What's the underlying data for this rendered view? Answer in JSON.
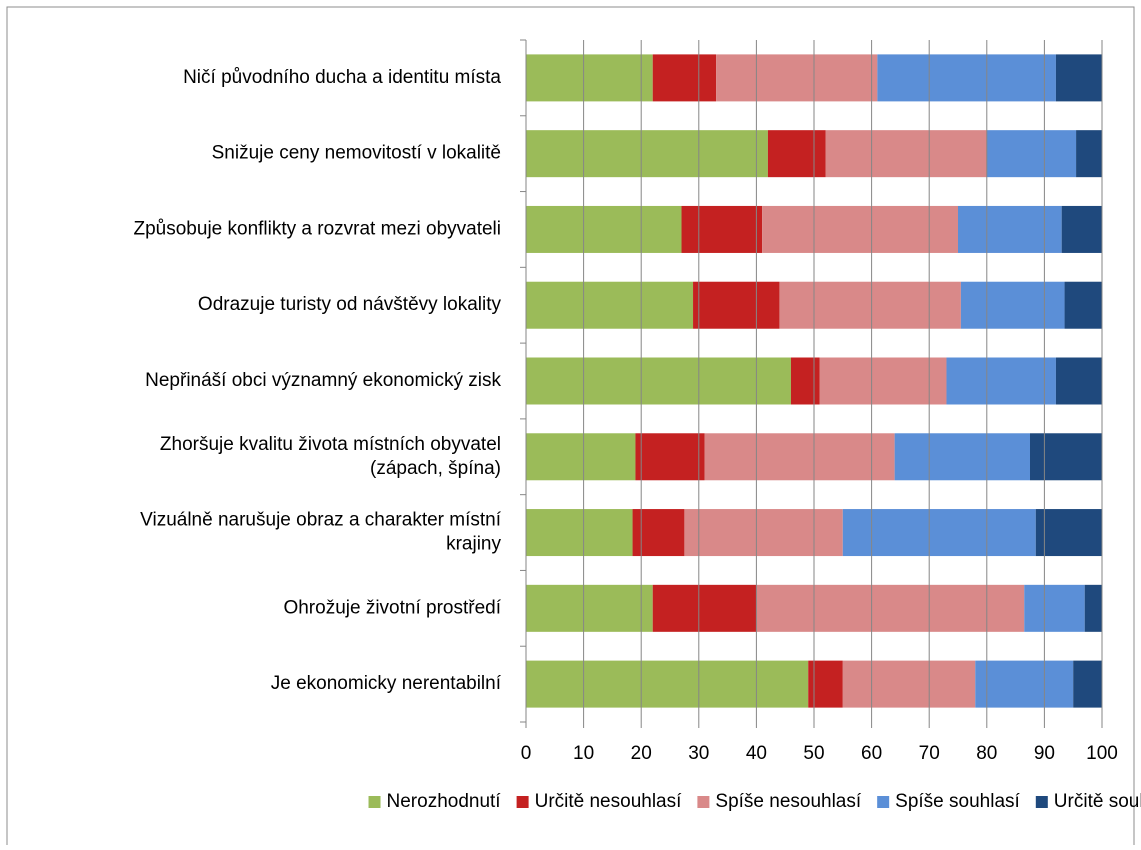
{
  "chart_data": {
    "type": "stacked-barh",
    "categories": [
      [
        "Ničí původního ducha a identitu místa"
      ],
      [
        "Snižuje ceny nemovitostí v lokalitě"
      ],
      [
        "Způsobuje konflikty a rozvrat mezi obyvateli"
      ],
      [
        "Odrazuje turisty od návštěvy lokality"
      ],
      [
        "Nepřináší obci významný ekonomický zisk"
      ],
      [
        "Zhoršuje kvalitu života místních obyvatel",
        "(zápach, špína)"
      ],
      [
        "Vizuálně narušuje obraz a charakter místní",
        "krajiny"
      ],
      [
        "Ohrožuje životní prostředí"
      ],
      [
        "Je ekonomicky nerentabilní"
      ]
    ],
    "series": [
      {
        "name": "Nerozhodnutí",
        "color": "#9bbb59",
        "values": [
          22,
          42,
          27,
          29,
          46,
          19,
          18.5,
          22,
          49
        ]
      },
      {
        "name": "Určitě nesouhlasí",
        "color": "#c42121",
        "values": [
          11,
          10,
          14,
          15,
          5,
          12,
          9,
          18,
          6
        ]
      },
      {
        "name": "Spíše nesouhlasí",
        "color": "#d98989",
        "values": [
          28,
          28,
          34,
          31.5,
          22,
          33,
          27.5,
          46.5,
          23
        ]
      },
      {
        "name": "Spíše souhlasí",
        "color": "#5b8fd7",
        "values": [
          31,
          15.5,
          18,
          18,
          19,
          23.5,
          33.5,
          10.5,
          17
        ]
      },
      {
        "name": "Určitě souhlasí",
        "color": "#1f497d",
        "values": [
          8,
          4.5,
          7,
          6.5,
          8,
          12.5,
          11.5,
          3,
          5
        ]
      }
    ],
    "xlim": [
      0,
      100
    ],
    "xticks": [
      0,
      10,
      20,
      30,
      40,
      50,
      60,
      70,
      80,
      90,
      100
    ],
    "grid": true,
    "legend": "bottom"
  }
}
